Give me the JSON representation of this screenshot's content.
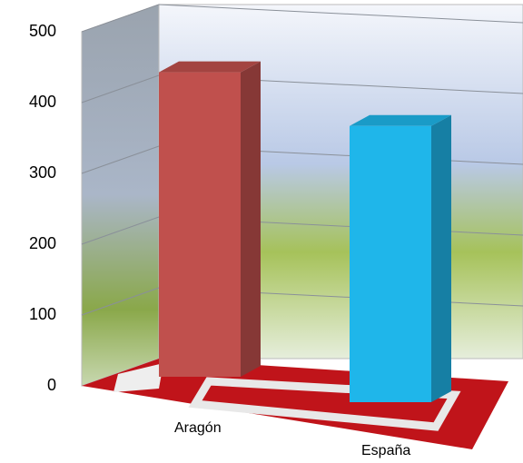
{
  "chart_data": {
    "type": "bar3d",
    "categories": [
      "Aragón",
      "España"
    ],
    "values": [
      430,
      390
    ],
    "colors": [
      "#c0504d",
      "#1fb6ea"
    ],
    "ylim": [
      0,
      500
    ],
    "yticks": [
      0,
      100,
      200,
      300,
      400,
      500
    ],
    "grid": true
  }
}
